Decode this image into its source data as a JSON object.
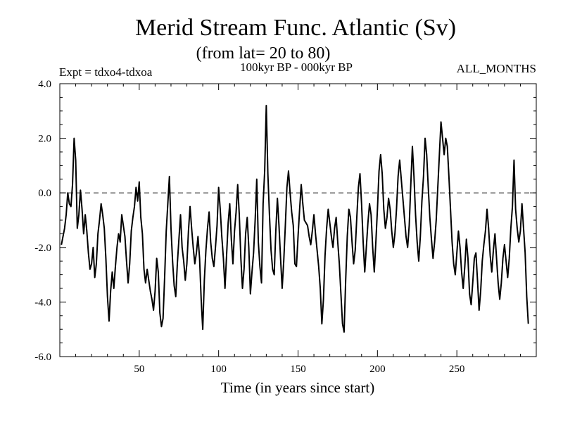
{
  "chart_data": {
    "type": "line",
    "title": "Merid Stream Func. Atlantic (Sv)",
    "subtitle": "(from lat= 20 to 80)",
    "left_label": "Expt = tdxo4-tdxoa",
    "center_label": "100kyr BP - 000kyr BP",
    "right_label": "ALL_MONTHS",
    "xlabel": "Time (in years since start)",
    "ylabel": "",
    "xlim": [
      0,
      300
    ],
    "ylim": [
      -6.0,
      4.0
    ],
    "x_ticks": [
      50,
      100,
      150,
      200,
      250
    ],
    "x_tick_labels": [
      "50",
      "100",
      "150",
      "200",
      "250"
    ],
    "y_ticks": [
      4.0,
      2.0,
      0.0,
      -2.0,
      -4.0,
      -6.0
    ],
    "y_tick_labels": [
      "4.0",
      "2.0",
      "0.0",
      "-2.0",
      "-4.0",
      "-6.0"
    ],
    "reference_line": 0.0,
    "grid": false,
    "legend": "none",
    "line_color": "#000000",
    "series": [
      {
        "x_start": 1,
        "x_step": 1,
        "values": [
          -1.9,
          -1.6,
          -1.3,
          -0.8,
          0.0,
          -0.4,
          -0.5,
          0.3,
          2.0,
          1.2,
          -1.3,
          -0.8,
          0.1,
          -0.6,
          -1.5,
          -0.8,
          -1.4,
          -2.2,
          -2.8,
          -2.6,
          -2.0,
          -3.1,
          -2.6,
          -1.5,
          -1.0,
          -0.4,
          -0.8,
          -1.3,
          -2.4,
          -3.8,
          -4.7,
          -3.6,
          -2.9,
          -3.5,
          -2.7,
          -2.0,
          -1.5,
          -1.8,
          -0.8,
          -1.2,
          -1.6,
          -2.5,
          -3.3,
          -2.6,
          -1.4,
          -0.9,
          -0.5,
          0.2,
          -0.3,
          0.4,
          -0.9,
          -1.5,
          -2.8,
          -3.3,
          -2.8,
          -3.2,
          -3.6,
          -3.9,
          -4.3,
          -3.6,
          -2.4,
          -2.9,
          -4.4,
          -4.9,
          -4.6,
          -3.1,
          -1.4,
          -0.4,
          0.6,
          -1.3,
          -2.5,
          -3.4,
          -3.8,
          -2.6,
          -1.7,
          -0.8,
          -2.0,
          -2.5,
          -3.2,
          -2.6,
          -1.4,
          -0.5,
          -1.3,
          -2.0,
          -2.6,
          -2.2,
          -1.6,
          -2.4,
          -3.9,
          -5.0,
          -3.2,
          -2.1,
          -1.3,
          -0.7,
          -1.8,
          -2.4,
          -2.7,
          -2.0,
          -1.2,
          0.2,
          -0.6,
          -1.6,
          -2.4,
          -3.5,
          -2.3,
          -1.1,
          -0.4,
          -1.7,
          -2.6,
          -1.4,
          -0.7,
          0.3,
          -0.8,
          -2.4,
          -3.5,
          -2.8,
          -1.5,
          -0.9,
          -2.0,
          -3.7,
          -2.9,
          -2.2,
          -1.0,
          0.5,
          -1.8,
          -2.7,
          -3.3,
          -0.4,
          0.8,
          3.2,
          0.7,
          -0.8,
          -2.1,
          -2.8,
          -3.0,
          -1.4,
          -0.2,
          -1.2,
          -2.4,
          -3.5,
          -2.5,
          -1.2,
          0.2,
          0.8,
          0.0,
          -0.7,
          -1.2,
          -2.6,
          -2.7,
          -1.6,
          -0.6,
          0.3,
          -0.4,
          -1.0,
          -1.1,
          -1.2,
          -1.6,
          -1.9,
          -1.4,
          -0.8,
          -1.5,
          -2.1,
          -2.7,
          -3.5,
          -4.8,
          -3.9,
          -2.3,
          -1.3,
          -0.6,
          -1.1,
          -1.6,
          -2.0,
          -1.3,
          -0.9,
          -1.8,
          -2.6,
          -3.7,
          -4.8,
          -5.1,
          -3.2,
          -1.6,
          -0.6,
          -0.9,
          -1.8,
          -2.6,
          -2.1,
          -0.9,
          0.2,
          0.7,
          -0.4,
          -1.8,
          -2.9,
          -2.0,
          -1.1,
          -0.4,
          -0.8,
          -2.0,
          -2.9,
          -1.8,
          -0.6,
          0.8,
          1.4,
          0.7,
          -0.6,
          -1.3,
          -0.9,
          -0.2,
          -0.6,
          -1.4,
          -2.0,
          -1.5,
          -0.6,
          0.6,
          1.2,
          0.5,
          -0.2,
          -0.9,
          -1.6,
          -2.0,
          -1.2,
          0.3,
          1.7,
          0.6,
          -0.8,
          -1.8,
          -2.5,
          -1.6,
          -0.3,
          0.6,
          2.0,
          1.4,
          0.2,
          -0.9,
          -1.7,
          -2.4,
          -1.8,
          -1.0,
          0.2,
          1.4,
          2.6,
          2.0,
          1.4,
          2.0,
          1.7,
          0.6,
          -0.6,
          -1.8,
          -2.6,
          -3.0,
          -2.2,
          -1.4,
          -2.0,
          -2.9,
          -3.5,
          -2.7,
          -1.7,
          -2.4,
          -3.7,
          -4.1,
          -3.3,
          -2.4,
          -2.2,
          -3.2,
          -4.3,
          -3.6,
          -2.5,
          -1.9,
          -1.4,
          -0.6,
          -1.3,
          -2.3,
          -2.9,
          -2.1,
          -1.5,
          -2.4,
          -3.3,
          -3.9,
          -3.3,
          -2.4,
          -1.9,
          -2.5,
          -3.1,
          -2.4,
          -1.3,
          -0.5,
          1.2,
          -0.6,
          -1.3,
          -1.8,
          -1.4,
          -0.4,
          -1.3,
          -2.2,
          -3.8,
          -4.8
        ]
      }
    ]
  }
}
